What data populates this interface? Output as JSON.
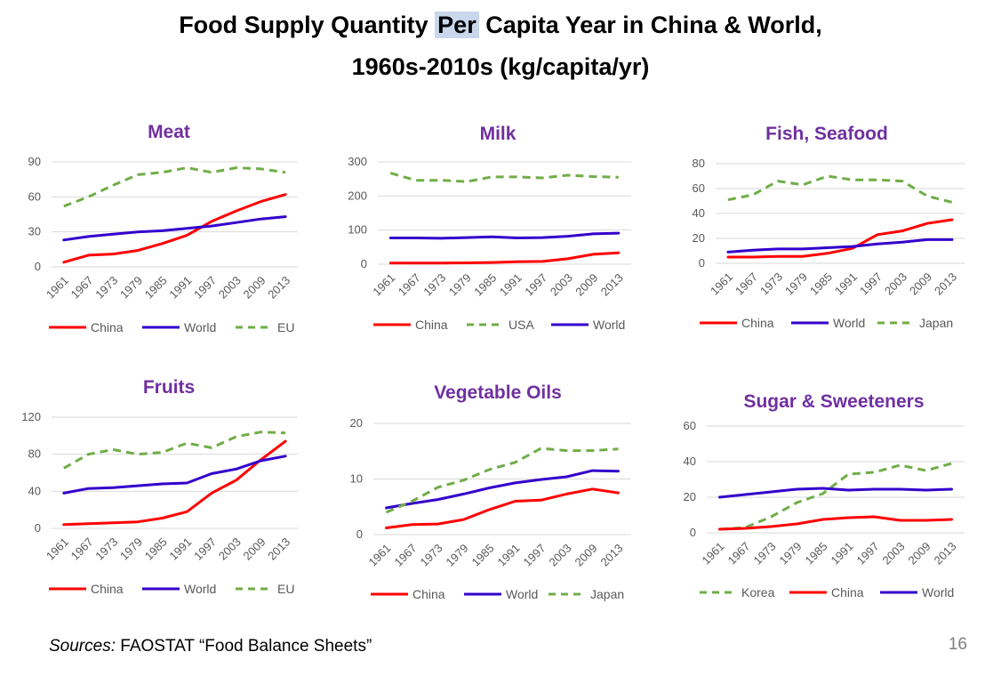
{
  "page": {
    "title_part1": "Food Supply Quantity ",
    "title_highlight": "Per",
    "title_part2": " Capita Year in China & World,",
    "title_line2": "1960s-2010s (kg/capita/yr)",
    "source_label": "Sources:",
    "source_text": " FAOSTAT “Food Balance Sheets”",
    "page_number": "16"
  },
  "colors": {
    "China": "#ff0000",
    "World": "#3300cc",
    "other": "#70ad47"
  },
  "chart_data": [
    {
      "id": "meat",
      "type": "line",
      "title": "Meat",
      "categories": [
        "1961",
        "1967",
        "1973",
        "1979",
        "1985",
        "1991",
        "1997",
        "2003",
        "2009",
        "2013"
      ],
      "ylim": [
        0,
        90
      ],
      "yticks": [
        0,
        30,
        60,
        90
      ],
      "series": [
        {
          "name": "China",
          "style": "China",
          "values": [
            4,
            10,
            11,
            14,
            20,
            27,
            39,
            48,
            56,
            62
          ]
        },
        {
          "name": "World",
          "style": "World",
          "values": [
            23,
            26,
            28,
            30,
            31,
            33,
            35,
            38,
            41,
            43
          ]
        },
        {
          "name": "EU",
          "style": "dash",
          "values": [
            52,
            60,
            70,
            79,
            81,
            85,
            81,
            85,
            84,
            81
          ]
        }
      ],
      "legend": [
        "China",
        "World",
        "EU"
      ]
    },
    {
      "id": "milk",
      "type": "line",
      "title": "Milk",
      "categories": [
        "1961",
        "1967",
        "1973",
        "1979",
        "1985",
        "1991",
        "1997",
        "2003",
        "2009",
        "2013"
      ],
      "ylim": [
        0,
        300
      ],
      "yticks": [
        0,
        100,
        200,
        300
      ],
      "series": [
        {
          "name": "China",
          "style": "China",
          "values": [
            3,
            3,
            3,
            4,
            5,
            7,
            8,
            16,
            29,
            33
          ]
        },
        {
          "name": "USA",
          "style": "dash",
          "values": [
            267,
            246,
            246,
            242,
            256,
            256,
            253,
            261,
            257,
            255
          ]
        },
        {
          "name": "World",
          "style": "World",
          "values": [
            77,
            77,
            76,
            78,
            80,
            77,
            78,
            82,
            89,
            91
          ]
        }
      ],
      "legend": [
        "China",
        "USA",
        "World"
      ]
    },
    {
      "id": "fish",
      "type": "line",
      "title": "Fish, Seafood",
      "categories": [
        "1961",
        "1967",
        "1973",
        "1979",
        "1985",
        "1991",
        "1997",
        "2003",
        "2009",
        "2013"
      ],
      "ylim": [
        0,
        80
      ],
      "yticks": [
        0,
        20,
        40,
        60,
        80
      ],
      "series": [
        {
          "name": "China",
          "style": "China",
          "values": [
            5,
            5,
            5.5,
            5.5,
            8,
            12,
            23,
            26,
            32,
            35
          ]
        },
        {
          "name": "World",
          "style": "World",
          "values": [
            9,
            10.5,
            11.5,
            11.5,
            12.5,
            13.5,
            15.5,
            17,
            19,
            19
          ]
        },
        {
          "name": "Japan",
          "style": "dash",
          "values": [
            51,
            55,
            66,
            63,
            70,
            67,
            67,
            66,
            54,
            49
          ]
        }
      ],
      "legend": [
        "China",
        "World",
        "Japan"
      ]
    },
    {
      "id": "fruits",
      "type": "line",
      "title": "Fruits",
      "categories": [
        "1961",
        "1967",
        "1973",
        "1979",
        "1985",
        "1991",
        "1997",
        "2003",
        "2009",
        "2013"
      ],
      "ylim": [
        0,
        120
      ],
      "yticks": [
        0,
        40,
        80,
        120
      ],
      "series": [
        {
          "name": "China",
          "style": "China",
          "values": [
            4,
            5,
            6,
            7,
            11,
            18,
            38,
            52,
            74,
            94
          ]
        },
        {
          "name": "World",
          "style": "World",
          "values": [
            38,
            43,
            44,
            46,
            48,
            49,
            59,
            64,
            73,
            78
          ]
        },
        {
          "name": "EU",
          "style": "dash",
          "values": [
            65,
            80,
            85,
            80,
            82,
            92,
            87,
            99,
            104,
            103
          ]
        }
      ],
      "legend": [
        "China",
        "World",
        "EU"
      ]
    },
    {
      "id": "oils",
      "type": "line",
      "title": "Vegetable Oils",
      "categories": [
        "1961",
        "1967",
        "1973",
        "1979",
        "1985",
        "1991",
        "1997",
        "2003",
        "2009",
        "2013"
      ],
      "ylim": [
        0,
        20
      ],
      "yticks": [
        0,
        10,
        20
      ],
      "series": [
        {
          "name": "China",
          "style": "China",
          "values": [
            1.2,
            1.8,
            1.9,
            2.7,
            4.5,
            6.0,
            6.2,
            7.3,
            8.2,
            7.5
          ]
        },
        {
          "name": "World",
          "style": "World",
          "values": [
            4.8,
            5.6,
            6.3,
            7.3,
            8.4,
            9.3,
            9.9,
            10.4,
            11.5,
            11.4
          ]
        },
        {
          "name": "Japan",
          "style": "dash",
          "values": [
            4.0,
            6.0,
            8.5,
            9.8,
            11.7,
            13.0,
            15.5,
            15.1,
            15.1,
            15.4
          ]
        }
      ],
      "legend": [
        "China",
        "World",
        "Japan"
      ]
    },
    {
      "id": "sugar",
      "type": "line",
      "title": "Sugar & Sweeteners",
      "categories": [
        "1961",
        "1967",
        "1973",
        "1979",
        "1985",
        "1991",
        "1997",
        "2003",
        "2009",
        "2013"
      ],
      "ylim": [
        0,
        60
      ],
      "yticks": [
        0,
        20,
        40,
        60
      ],
      "series": [
        {
          "name": "Korea",
          "style": "dash",
          "values": [
            2,
            3,
            9,
            17,
            22,
            33,
            34,
            38,
            35,
            39
          ]
        },
        {
          "name": "China",
          "style": "China",
          "values": [
            2,
            2.5,
            3.5,
            5,
            7.5,
            8.5,
            9,
            7,
            7,
            7.5
          ]
        },
        {
          "name": "World",
          "style": "World",
          "values": [
            20,
            21.5,
            23,
            24.5,
            25,
            24,
            24.5,
            24.5,
            24,
            24.5
          ]
        }
      ],
      "legend": [
        "Korea",
        "China",
        "World"
      ]
    }
  ]
}
